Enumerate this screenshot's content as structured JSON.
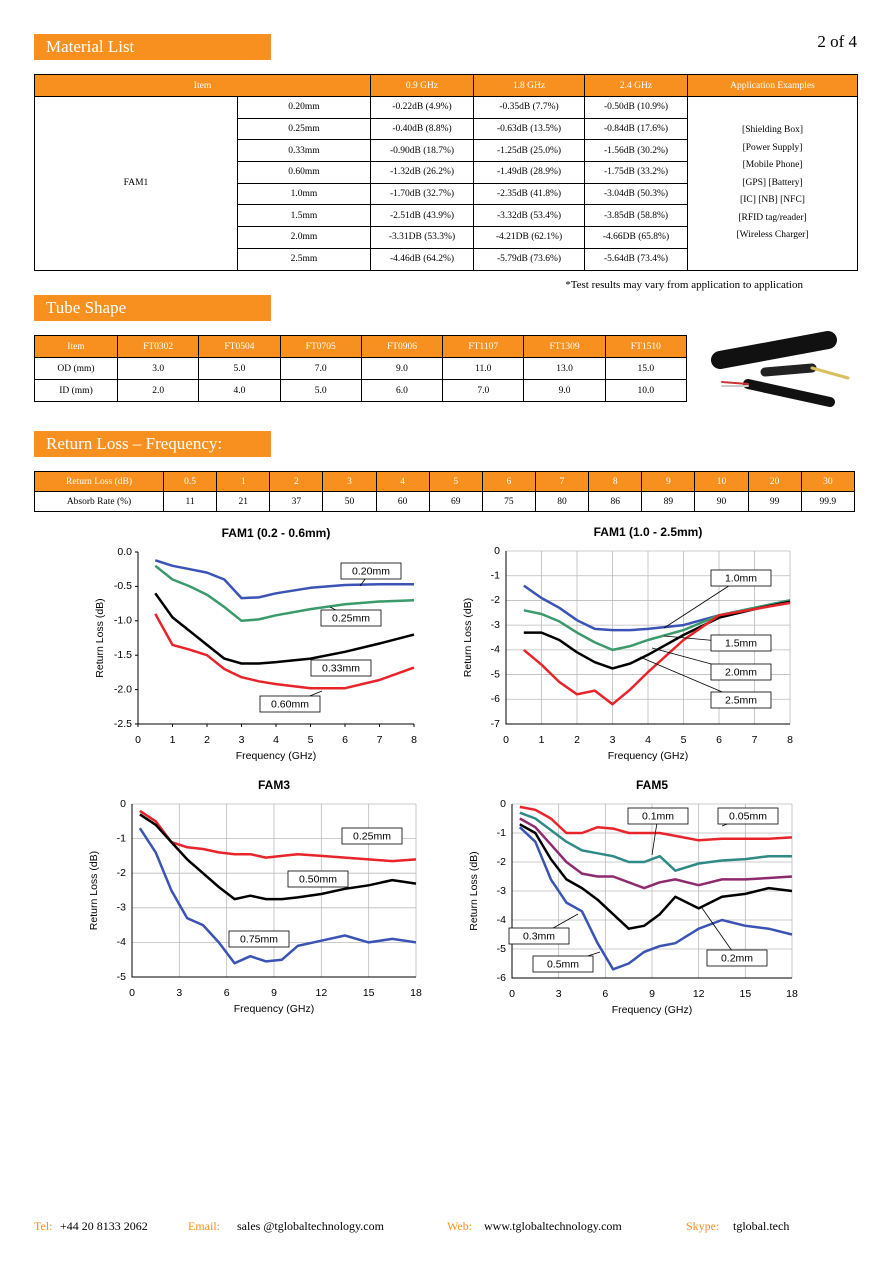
{
  "header": {
    "page": "2 of 4"
  },
  "sections": {
    "material": "Material List",
    "tube": "Tube Shape",
    "return_loss": "Return Loss – Frequency:"
  },
  "material_list": {
    "headers": [
      "Item",
      "0.9 GHz",
      "1.8 GHz",
      "2.4 GHz",
      "Application Examples"
    ],
    "material": "FAM1",
    "rows": [
      [
        "0.20mm",
        "-0.22dB (4.9%)",
        "-0.35dB (7.7%)",
        "-0.50dB (10.9%)"
      ],
      [
        "0.25mm",
        "-0.40dB (8.8%)",
        "-0.63dB (13.5%)",
        "-0.84dB (17.6%)"
      ],
      [
        "0.33mm",
        "-0.90dB (18.7%)",
        "-1.25dB (25.0%)",
        "-1.56dB (30.2%)"
      ],
      [
        "0.60mm",
        "-1.32dB (26.2%)",
        "-1.49dB (28.9%)",
        "-1.75dB (33.2%)"
      ],
      [
        "1.0mm",
        "-1.70dB (32.7%)",
        "-2.35dB (41.8%)",
        "-3.04dB (50.3%)"
      ],
      [
        "1.5mm",
        "-2.51dB (43.9%)",
        "-3.32dB (53.4%)",
        "-3.85dB (58.8%)"
      ],
      [
        "2.0mm",
        "-3.31DB (53.3%)",
        "-4.21DB (62.1%)",
        "-4.66DB (65.8%)"
      ],
      [
        "2.5mm",
        "-4.46dB (64.2%)",
        "-5.79dB (73.6%)",
        "-5.64dB (73.4%)"
      ]
    ],
    "applications": [
      "[Shielding Box]",
      "[Power Supply]",
      "[Mobile Phone]",
      "[GPS] [Battery]",
      "[IC] [NB] [NFC]",
      "[RFID tag/reader]",
      "[Wireless Charger]"
    ],
    "note": "*Test results may vary from application to application"
  },
  "tube_shape": {
    "rows": [
      [
        "Item",
        "FT0302",
        "FT0504",
        "FT0705",
        "FT0906",
        "FT1107",
        "FT1309",
        "FT1510"
      ],
      [
        "OD (mm)",
        "3.0",
        "5.0",
        "7.0",
        "9.0",
        "11.0",
        "13.0",
        "15.0"
      ],
      [
        "ID (mm)",
        "2.0",
        "4.0",
        "5.0",
        "6.0",
        "7.0",
        "9.0",
        "10.0"
      ]
    ]
  },
  "return_loss_table": {
    "rows": [
      [
        "Return Loss (dB)",
        "0.5",
        "1",
        "2",
        "3",
        "4",
        "5",
        "6",
        "7",
        "8",
        "9",
        "10",
        "20",
        "30"
      ],
      [
        "Absorb Rate (%)",
        "11",
        "21",
        "37",
        "50",
        "60",
        "69",
        "75",
        "80",
        "86",
        "89",
        "90",
        "99",
        "99.9"
      ]
    ]
  },
  "chart_data": [
    {
      "type": "line",
      "title": "FAM1 (0.2 - 0.6mm)",
      "x_label": "Frequency (GHz)",
      "y_label": "Return Loss (dB)",
      "xlim": [
        0,
        8
      ],
      "xticks": [
        0,
        1,
        2,
        3,
        4,
        5,
        6,
        7,
        8
      ],
      "ylim": [
        -2.5,
        0
      ],
      "yticks": [
        {
          "value": 0,
          "label": "0.0"
        },
        -0.5,
        {
          "value": -1,
          "label": "-1.0"
        },
        -1.5,
        {
          "value": -2,
          "label": "-2.0"
        },
        -2.5
      ],
      "grid": false,
      "x": [
        0.5,
        1,
        1.5,
        2,
        2.5,
        3,
        3.5,
        4,
        5,
        6,
        7,
        8
      ],
      "series": [
        {
          "name": "0.20mm",
          "color": "#3a53b5",
          "values": [
            -0.12,
            -0.2,
            -0.25,
            -0.3,
            -0.4,
            -0.67,
            -0.66,
            -0.6,
            -0.52,
            -0.48,
            -0.47,
            -0.47
          ]
        },
        {
          "name": "0.25mm",
          "color": "#3a9a6a",
          "values": [
            -0.2,
            -0.4,
            -0.5,
            -0.62,
            -0.8,
            -1.0,
            -0.98,
            -0.92,
            -0.83,
            -0.76,
            -0.72,
            -0.7
          ]
        },
        {
          "name": "0.33mm",
          "color": "#000000",
          "values": [
            -0.6,
            -0.95,
            -1.15,
            -1.35,
            -1.55,
            -1.62,
            -1.62,
            -1.6,
            -1.55,
            -1.45,
            -1.33,
            -1.2
          ]
        },
        {
          "name": "0.60mm",
          "color": "#e8242a",
          "values": [
            -0.9,
            -1.35,
            -1.42,
            -1.5,
            -1.7,
            -1.82,
            -1.88,
            -1.92,
            -1.98,
            -1.98,
            -1.86,
            -1.68
          ]
        }
      ]
    },
    {
      "type": "line",
      "title": "FAM1 (1.0 - 2.5mm)",
      "x_label": "Frequency (GHz)",
      "y_label": "Return Loss (dB)",
      "xlim": [
        0,
        8
      ],
      "xticks": [
        0,
        1,
        2,
        3,
        4,
        5,
        6,
        7,
        8
      ],
      "ylim": [
        -7,
        0
      ],
      "yticks": [
        0,
        -1,
        -2,
        -3,
        -4,
        -5,
        -6,
        -7
      ],
      "grid": true,
      "x": [
        0.5,
        1,
        1.5,
        2,
        2.5,
        3,
        3.5,
        4,
        5,
        6,
        7,
        8
      ],
      "series": [
        {
          "name": "1.0mm",
          "color": "#3a53b5",
          "values": [
            -1.4,
            -1.9,
            -2.3,
            -2.8,
            -3.15,
            -3.2,
            -3.2,
            -3.15,
            -3.0,
            -2.6,
            -2.3,
            -2.0
          ]
        },
        {
          "name": "1.5mm",
          "color": "#3a9a6a",
          "values": [
            -2.4,
            -2.55,
            -2.85,
            -3.3,
            -3.7,
            -4.0,
            -3.85,
            -3.6,
            -3.2,
            -2.6,
            -2.3,
            -2.0
          ]
        },
        {
          "name": "2.0mm",
          "color": "#000000",
          "values": [
            -3.3,
            -3.3,
            -3.6,
            -4.1,
            -4.5,
            -4.75,
            -4.55,
            -4.2,
            -3.4,
            -2.7,
            -2.35,
            -2.05
          ]
        },
        {
          "name": "2.5mm",
          "color": "#e8242a",
          "values": [
            -4.0,
            -4.6,
            -5.3,
            -5.8,
            -5.65,
            -6.2,
            -5.6,
            -4.9,
            -3.6,
            -2.6,
            -2.35,
            -2.1
          ]
        }
      ]
    },
    {
      "type": "line",
      "title": "FAM3",
      "x_label": "Frequency (GHz)",
      "y_label": "Return Loss (dB)",
      "xlim": [
        0,
        18
      ],
      "xticks": [
        0,
        3,
        6,
        9,
        12,
        15,
        18
      ],
      "ylim": [
        -5,
        0
      ],
      "yticks": [
        0,
        -1,
        -2,
        -3,
        -4,
        -5
      ],
      "grid": true,
      "x": [
        0.5,
        1.5,
        2.5,
        3.5,
        4.5,
        5.5,
        6.5,
        7.5,
        8.5,
        9.5,
        10.5,
        12,
        13.5,
        15,
        16.5,
        18
      ],
      "series": [
        {
          "name": "0.25mm",
          "color": "#e8242a",
          "values": [
            -0.2,
            -0.5,
            -1.1,
            -1.25,
            -1.3,
            -1.4,
            -1.45,
            -1.45,
            -1.55,
            -1.5,
            -1.45,
            -1.5,
            -1.55,
            -1.6,
            -1.65,
            -1.6
          ]
        },
        {
          "name": "0.50mm",
          "color": "#000000",
          "values": [
            -0.3,
            -0.6,
            -1.1,
            -1.6,
            -2.0,
            -2.4,
            -2.75,
            -2.65,
            -2.75,
            -2.75,
            -2.7,
            -2.6,
            -2.45,
            -2.35,
            -2.2,
            -2.3
          ]
        },
        {
          "name": "0.75mm",
          "color": "#3a53b5",
          "values": [
            -0.7,
            -1.4,
            -2.5,
            -3.3,
            -3.5,
            -4.0,
            -4.6,
            -4.4,
            -4.55,
            -4.5,
            -4.1,
            -3.95,
            -3.8,
            -4.0,
            -3.9,
            -4.0
          ]
        }
      ]
    },
    {
      "type": "line",
      "title": "FAM5",
      "x_label": "Frequency (GHz)",
      "y_label": "Return Loss (dB)",
      "xlim": [
        0,
        18
      ],
      "xticks": [
        0,
        3,
        6,
        9,
        12,
        15,
        18
      ],
      "ylim": [
        -6,
        0
      ],
      "yticks": [
        0,
        -1,
        -2,
        -3,
        -4,
        -5,
        -6
      ],
      "grid": true,
      "x": [
        0.5,
        1.5,
        2.5,
        3.5,
        4.5,
        5.5,
        6.5,
        7.5,
        8.5,
        9.5,
        10.5,
        12,
        13.5,
        15,
        16.5,
        18
      ],
      "series": [
        {
          "name": "0.05mm",
          "color": "#e8242a",
          "values": [
            -0.1,
            -0.2,
            -0.5,
            -1.0,
            -1.0,
            -0.8,
            -0.85,
            -1.0,
            -1.0,
            -1.0,
            -1.1,
            -1.25,
            -1.2,
            -1.2,
            -1.2,
            -1.15
          ]
        },
        {
          "name": "0.1mm",
          "color": "#2f8a86",
          "values": [
            -0.3,
            -0.5,
            -0.9,
            -1.3,
            -1.6,
            -1.7,
            -1.8,
            -2.0,
            -2.0,
            -1.8,
            -2.3,
            -2.05,
            -1.95,
            -1.9,
            -1.8,
            -1.8
          ]
        },
        {
          "name": "0.2mm",
          "color": "#8e2a6e",
          "values": [
            -0.5,
            -0.8,
            -1.4,
            -2.0,
            -2.4,
            -2.5,
            -2.5,
            -2.7,
            -2.9,
            -2.7,
            -2.6,
            -2.8,
            -2.6,
            -2.6,
            -2.55,
            -2.5
          ]
        },
        {
          "name": "0.3mm",
          "color": "#000000",
          "values": [
            -0.7,
            -1.0,
            -1.9,
            -2.6,
            -2.9,
            -3.3,
            -3.8,
            -4.3,
            -4.2,
            -3.8,
            -3.2,
            -3.6,
            -3.2,
            -3.1,
            -2.9,
            -3.0
          ]
        },
        {
          "name": "0.5mm",
          "color": "#3a53b5",
          "values": [
            -0.8,
            -1.3,
            -2.6,
            -3.4,
            -3.7,
            -4.8,
            -5.7,
            -5.5,
            -5.1,
            -4.9,
            -4.8,
            -4.3,
            -4.0,
            -4.2,
            -4.3,
            -4.5
          ]
        }
      ]
    }
  ],
  "footer": {
    "tel_label": "Tel:",
    "tel": "+44 20 8133 2062",
    "email_label": "Email:",
    "email": "sales @tglobaltechnology.com",
    "web_label": "Web:",
    "web": "www.tglobaltechnology.com",
    "skype_label": "Skype:",
    "skype": "tglobal.tech"
  }
}
